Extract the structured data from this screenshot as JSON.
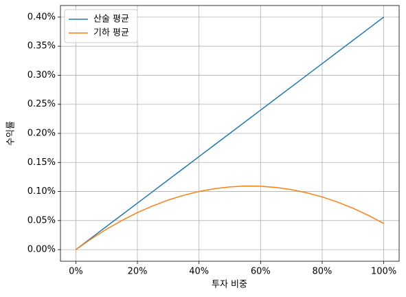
{
  "chart_data": {
    "type": "line",
    "x_label": "투자 비중",
    "y_label": "수익률",
    "x": [
      0,
      5,
      10,
      15,
      20,
      25,
      30,
      35,
      40,
      45,
      50,
      55,
      60,
      65,
      70,
      75,
      80,
      85,
      90,
      95,
      100
    ],
    "series": [
      {
        "name": "산술 평균",
        "color": "#1f77b4",
        "values": [
          0,
          0.02,
          0.04,
          0.06,
          0.08,
          0.1,
          0.12,
          0.14,
          0.16,
          0.18,
          0.2,
          0.22,
          0.24,
          0.26,
          0.28,
          0.3,
          0.32,
          0.34,
          0.36,
          0.38,
          0.4
        ]
      },
      {
        "name": "기하 평균",
        "color": "#ff7f0e",
        "values": [
          0,
          0.0185,
          0.0353,
          0.0503,
          0.0637,
          0.0753,
          0.0853,
          0.0935,
          0.1,
          0.1048,
          0.1079,
          0.1093,
          0.109,
          0.107,
          0.1033,
          0.0978,
          0.0907,
          0.0818,
          0.0713,
          0.059,
          0.045
        ]
      }
    ],
    "xlim": [
      -5,
      105
    ],
    "ylim": [
      -0.02,
      0.42
    ],
    "xticks": [
      {
        "value": 0,
        "label": "0%"
      },
      {
        "value": 20,
        "label": "20%"
      },
      {
        "value": 40,
        "label": "40%"
      },
      {
        "value": 60,
        "label": "60%"
      },
      {
        "value": 80,
        "label": "80%"
      },
      {
        "value": 100,
        "label": "100%"
      }
    ],
    "yticks": [
      {
        "value": 0,
        "label": "0.00%"
      },
      {
        "value": 0.05,
        "label": "0.05%"
      },
      {
        "value": 0.1,
        "label": "0.10%"
      },
      {
        "value": 0.15,
        "label": "0.15%"
      },
      {
        "value": 0.2,
        "label": "0.20%"
      },
      {
        "value": 0.25,
        "label": "0.25%"
      },
      {
        "value": 0.3,
        "label": "0.30%"
      },
      {
        "value": 0.35,
        "label": "0.35%"
      },
      {
        "value": 0.4,
        "label": "0.40%"
      }
    ],
    "grid": true,
    "legend": "upper left"
  }
}
